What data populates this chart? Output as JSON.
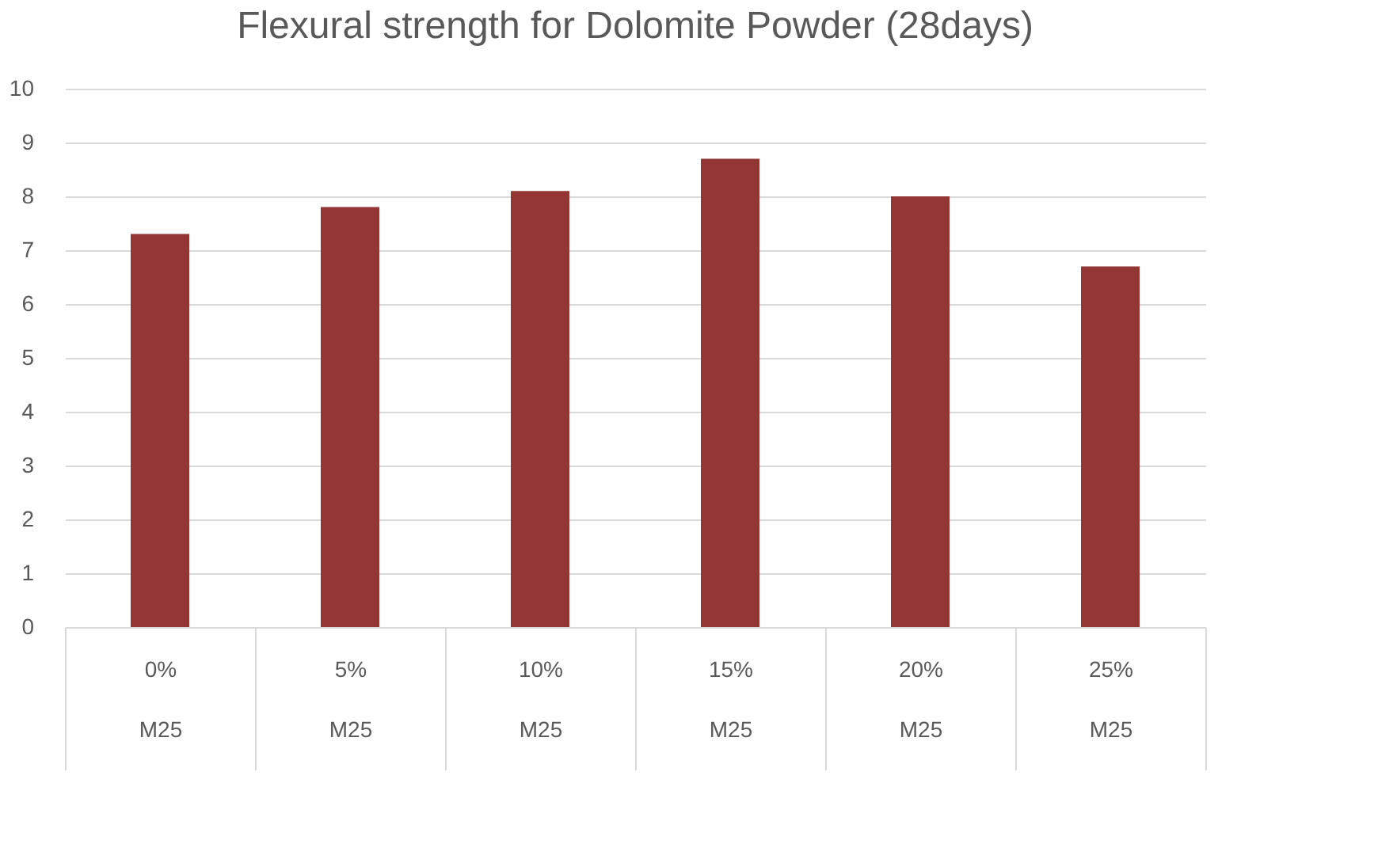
{
  "chart_data": {
    "type": "bar",
    "title": "Flexural strength for Dolomite Powder (28days)",
    "categories": [
      "0%\nM25",
      "5%\nM25",
      "10%\nM25",
      "15%\nM25",
      "20%\nM25",
      "25%\nM25"
    ],
    "values": [
      7.3,
      7.8,
      8.1,
      8.7,
      8.0,
      6.7
    ],
    "color": "#943634",
    "ylim": [
      0,
      10
    ],
    "yticks": [
      0,
      1,
      2,
      3,
      4,
      5,
      6,
      7,
      8,
      9,
      10
    ],
    "grid": "y"
  }
}
